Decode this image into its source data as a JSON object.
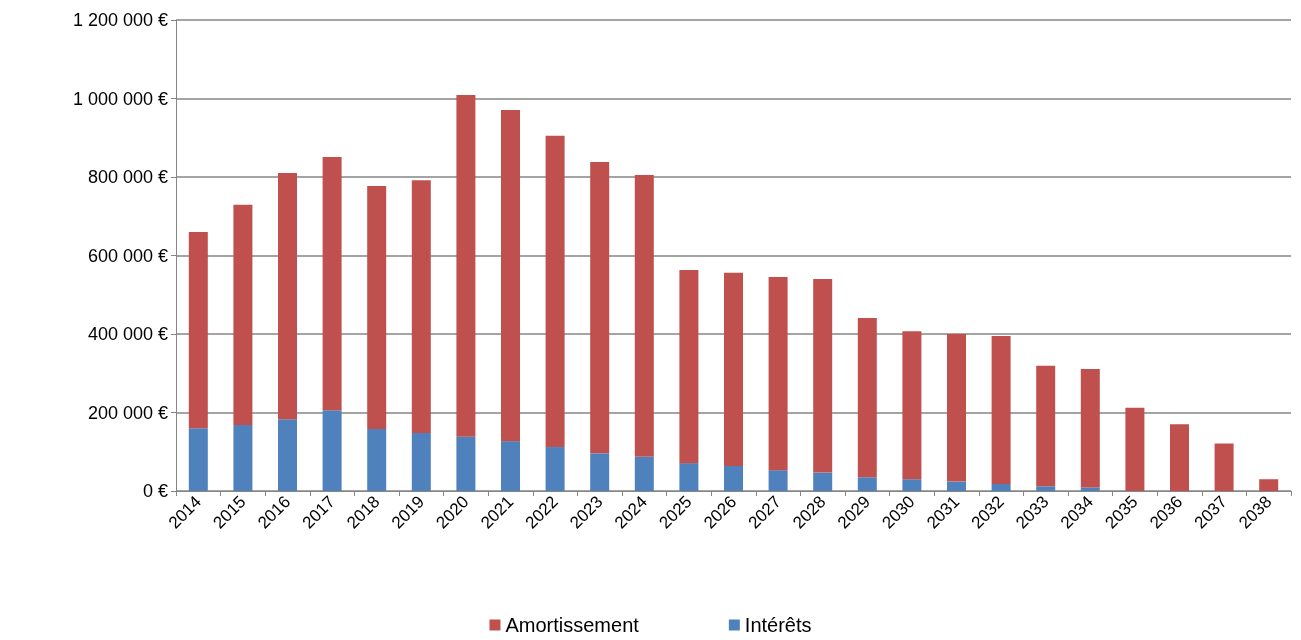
{
  "chart_data": {
    "type": "bar",
    "stacked": true,
    "categories": [
      "2014",
      "2015",
      "2016",
      "2017",
      "2018",
      "2019",
      "2020",
      "2021",
      "2022",
      "2023",
      "2024",
      "2025",
      "2026",
      "2027",
      "2028",
      "2029",
      "2030",
      "2031",
      "2032",
      "2033",
      "2034",
      "2035",
      "2036",
      "2037",
      "2038"
    ],
    "series": [
      {
        "name": "Intérêts",
        "color": "#4f81bd",
        "values": [
          160000,
          168000,
          183000,
          206000,
          158000,
          148000,
          138000,
          127000,
          112000,
          96000,
          87000,
          71000,
          64000,
          53000,
          47000,
          35000,
          30000,
          24000,
          18000,
          12000,
          9000,
          null,
          null,
          null,
          0
        ]
      },
      {
        "name": "Amortissement",
        "color": "#c0504d",
        "values": [
          500000,
          561000,
          627000,
          645000,
          619000,
          644000,
          871000,
          844000,
          793000,
          742000,
          718000,
          492000,
          492000,
          492000,
          493000,
          406000,
          377000,
          376000,
          377000,
          307000,
          302000,
          212000,
          170000,
          121000,
          30000
        ]
      }
    ],
    "ylim": [
      0,
      1200000
    ],
    "yticks": [
      {
        "value": 0,
        "label": "0 €"
      },
      {
        "value": 200000,
        "label": "200 000 €"
      },
      {
        "value": 400000,
        "label": "400 000 €"
      },
      {
        "value": 600000,
        "label": "600 000 €"
      },
      {
        "value": 800000,
        "label": "800 000 €"
      },
      {
        "value": 1000000,
        "label": "1 000 000 €"
      },
      {
        "value": 1200000,
        "label": "1 200 000 €"
      }
    ],
    "grid": "y",
    "legend": "bottom"
  }
}
